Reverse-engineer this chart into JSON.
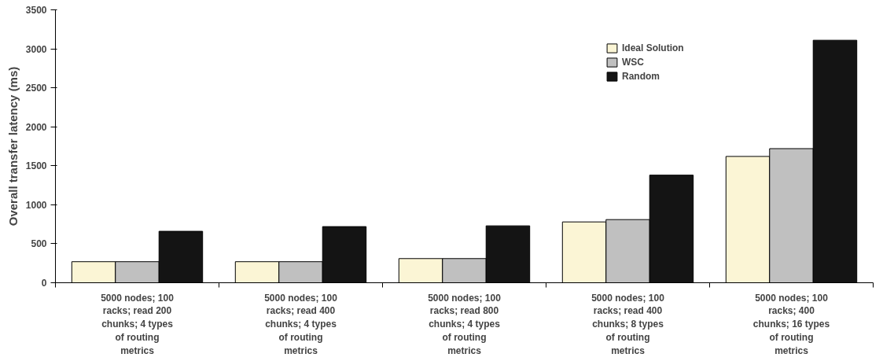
{
  "chart_data": {
    "type": "bar",
    "ylabel": "Overall transfer latency (ms)",
    "categories": [
      "5000 nodes; 100 racks; read 200 chunks; 4 types of routing metrics",
      "5000 nodes; 100 racks; read 400 chunks; 4 types of routing metrics",
      "5000 nodes; 100 racks; read 800 chunks; 4 types of routing metrics",
      "5000 nodes; 100 racks; read 400 chunks; 8 types of routing metrics",
      "5000 nodes; 100 racks; 400 chunks; 16 types of routing metrics"
    ],
    "series": [
      {
        "name": "Ideal Solution",
        "color": "#fbf5d5",
        "values": [
          270,
          270,
          310,
          780,
          1620
        ]
      },
      {
        "name": "WSC",
        "color": "#c0c0c0",
        "values": [
          270,
          270,
          310,
          810,
          1720
        ]
      },
      {
        "name": "Random",
        "color": "#141414",
        "values": [
          660,
          720,
          730,
          1380,
          3110
        ]
      }
    ],
    "ylim": [
      0,
      3500
    ],
    "yticks": [
      0,
      500,
      1000,
      1500,
      2000,
      2500,
      3000,
      3500
    ],
    "grid": false,
    "legend": "top right"
  }
}
